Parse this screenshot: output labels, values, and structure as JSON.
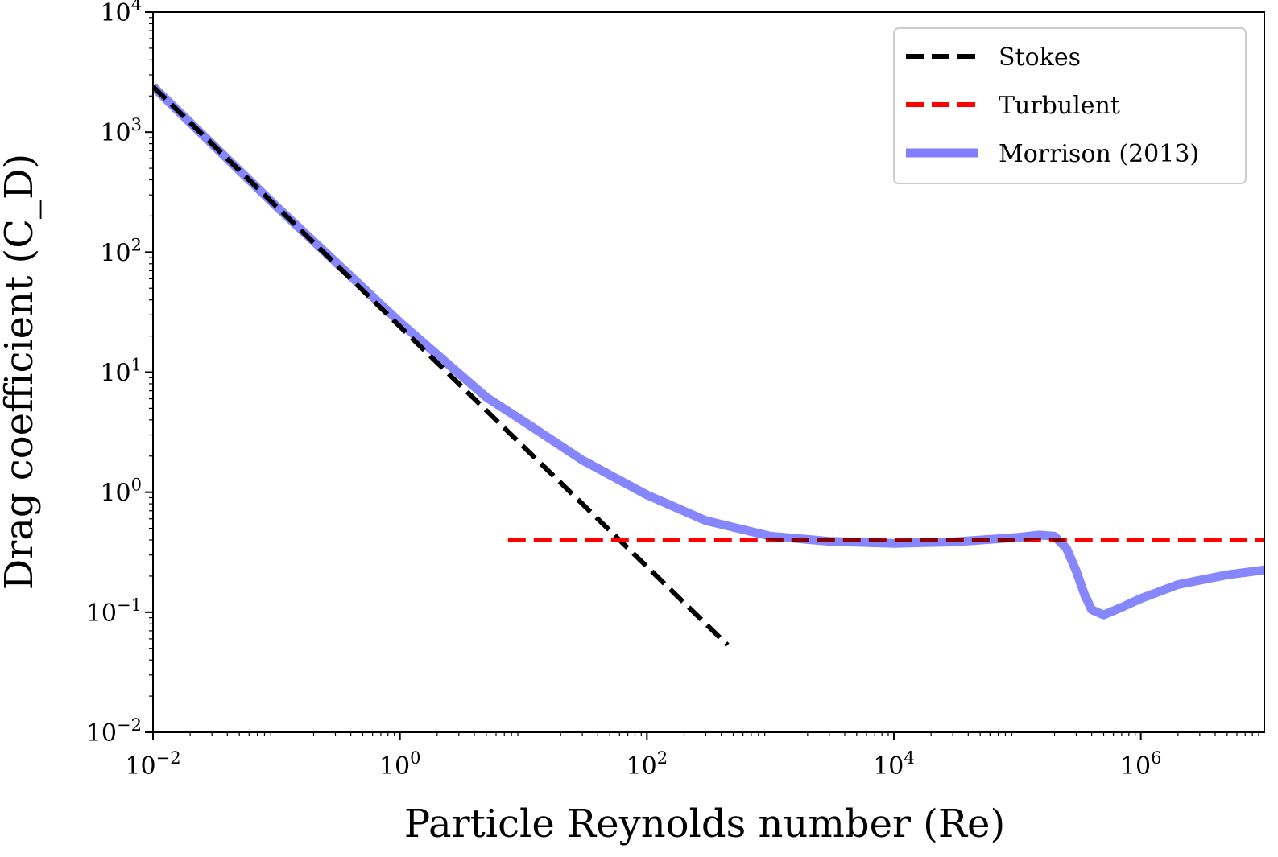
{
  "chart_data": {
    "type": "line",
    "title": "",
    "xlabel": "Particle Reynolds number (Re)",
    "ylabel": "Drag coefficient (C_D)",
    "xscale": "log",
    "yscale": "log",
    "xlim": [
      0.01,
      10000000
    ],
    "ylim": [
      0.01,
      10000
    ],
    "grid": false,
    "legend_position": "top-right",
    "x_ticks": [
      {
        "value": 0.01,
        "base": "10",
        "exp": "−2"
      },
      {
        "value": 1,
        "base": "10",
        "exp": "0"
      },
      {
        "value": 100,
        "base": "10",
        "exp": "2"
      },
      {
        "value": 10000,
        "base": "10",
        "exp": "4"
      },
      {
        "value": 1000000,
        "base": "10",
        "exp": "6"
      }
    ],
    "y_ticks": [
      {
        "value": 0.01,
        "base": "10",
        "exp": "−2"
      },
      {
        "value": 0.1,
        "base": "10",
        "exp": "−1"
      },
      {
        "value": 1,
        "base": "10",
        "exp": "0"
      },
      {
        "value": 10,
        "base": "10",
        "exp": "1"
      },
      {
        "value": 100,
        "base": "10",
        "exp": "2"
      },
      {
        "value": 1000,
        "base": "10",
        "exp": "3"
      },
      {
        "value": 10000,
        "base": "10",
        "exp": "4"
      }
    ],
    "series": [
      {
        "name": "Stokes",
        "color": "#000000",
        "style": "dashed",
        "x": [
          0.01,
          0.1,
          1,
          10,
          100,
          450
        ],
        "y": [
          2400,
          240,
          24,
          2.4,
          0.24,
          0.0533
        ]
      },
      {
        "name": "Turbulent",
        "color": "#ff0000",
        "style": "dashed",
        "x": [
          7.5,
          10000000
        ],
        "y": [
          0.4,
          0.4
        ]
      },
      {
        "name": "Morrison (2013)",
        "color": "#8080ff",
        "style": "solid",
        "x": [
          0.01,
          0.1,
          1,
          2,
          5,
          10,
          30,
          100,
          300,
          1000,
          3000,
          10000,
          30000,
          100000,
          150000,
          200000,
          250000,
          300000,
          350000,
          400000,
          500000,
          700000,
          1000000,
          2000000,
          5000000,
          10000000
        ],
        "y": [
          2400,
          240,
          26,
          14,
          6.2,
          3.9,
          1.85,
          0.95,
          0.58,
          0.43,
          0.39,
          0.375,
          0.385,
          0.42,
          0.44,
          0.43,
          0.34,
          0.22,
          0.14,
          0.105,
          0.095,
          0.11,
          0.13,
          0.17,
          0.205,
          0.225
        ]
      }
    ]
  }
}
